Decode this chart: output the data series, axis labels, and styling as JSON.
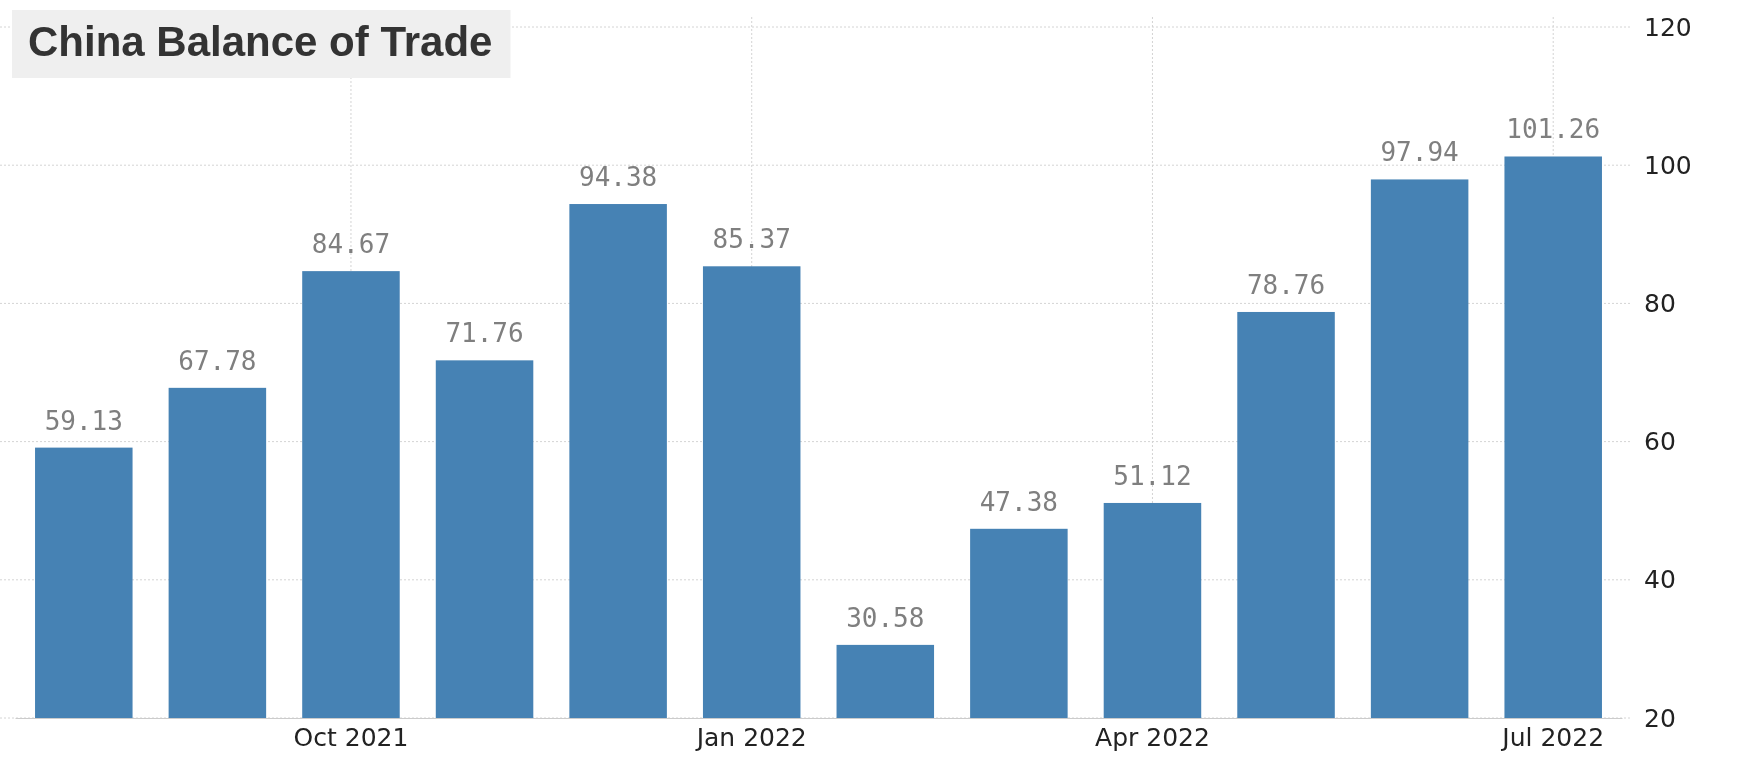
{
  "chart_data": {
    "type": "bar",
    "title": "China Balance of Trade",
    "categories": [
      null,
      null,
      "Oct 2021",
      null,
      null,
      "Jan 2022",
      null,
      null,
      "Apr 2022",
      null,
      null,
      "Jul 2022"
    ],
    "values": [
      59.13,
      67.78,
      84.67,
      71.76,
      94.38,
      85.37,
      30.58,
      47.38,
      51.12,
      78.76,
      97.94,
      101.26
    ],
    "color": "#4682b4",
    "ylim": [
      20,
      120
    ],
    "yticks": [
      20,
      40,
      60,
      80,
      100,
      120
    ],
    "grid": true,
    "data_labels": true
  }
}
